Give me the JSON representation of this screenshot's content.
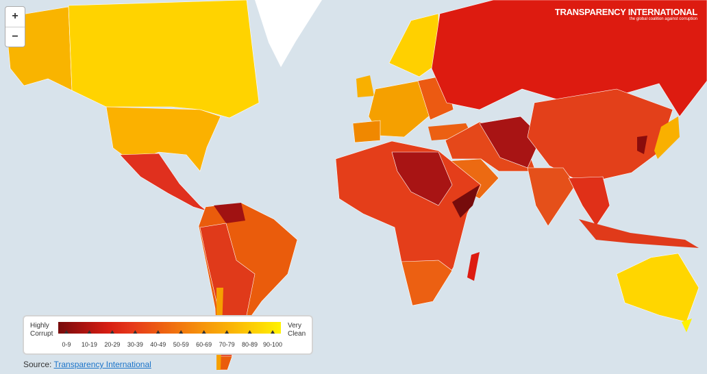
{
  "controls": {
    "zoom_in": "+",
    "zoom_out": "−"
  },
  "logo": {
    "title": "TRANSPARENCY INTERNATIONAL",
    "tagline": "the global coalition against corruption"
  },
  "legend": {
    "low_label": "Highly Corrupt",
    "high_label": "Very Clean",
    "bins": [
      {
        "label": "0-9",
        "color": "#760c0c"
      },
      {
        "label": "10-19",
        "color": "#a8120f"
      },
      {
        "label": "20-29",
        "color": "#d61d12"
      },
      {
        "label": "30-39",
        "color": "#e6391a"
      },
      {
        "label": "40-49",
        "color": "#ec5a12"
      },
      {
        "label": "50-59",
        "color": "#f27a0e"
      },
      {
        "label": "60-69",
        "color": "#f6990a"
      },
      {
        "label": "70-79",
        "color": "#fab406"
      },
      {
        "label": "80-89",
        "color": "#fdd203"
      },
      {
        "label": "90-100",
        "color": "#fff200"
      }
    ]
  },
  "source": {
    "prefix": "Source:",
    "link": "Transparency International"
  }
}
